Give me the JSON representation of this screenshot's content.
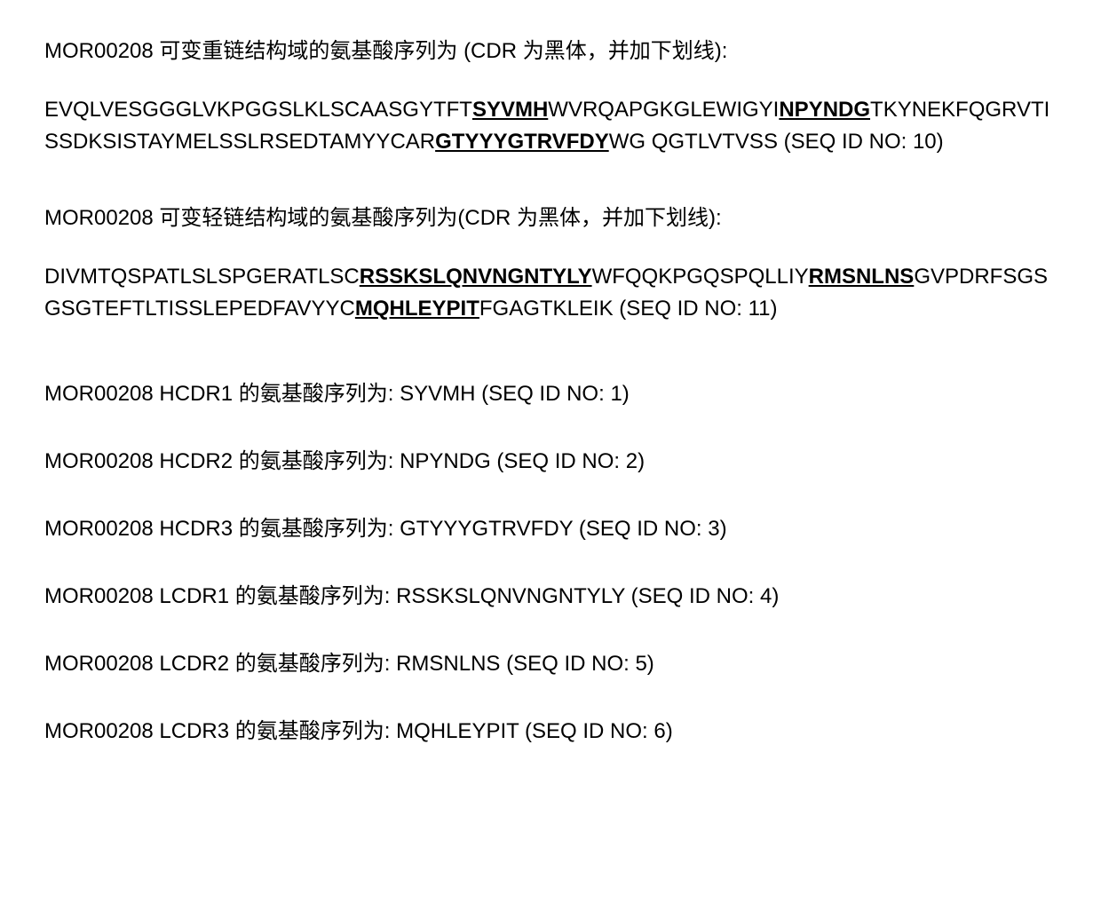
{
  "heavy_chain": {
    "heading": "MOR00208 可变重链结构域的氨基酸序列为 (CDR 为黑体，并加下划线):",
    "seq_pre1": "EVQLVESGGGLVKPGGSLKLSCAASGYTFT",
    "cdr1": "SYVMH",
    "seq_mid1": "WVRQAPGKGLEWIGYI",
    "cdr2": "NPYNDG",
    "seq_mid2": "TKYNEKFQGRVTISSDKSISTAYMELSSLRSEDTAMYYCAR",
    "cdr3": "GTYYYGTRVFDY",
    "seq_post": "WG QGTLVTVSS (SEQ ID NO: 10)"
  },
  "light_chain": {
    "heading": "MOR00208 可变轻链结构域的氨基酸序列为(CDR 为黑体，并加下划线):",
    "seq_pre1": "DIVMTQSPATLSLSPGERATLSC",
    "cdr1": "RSSKSLQNVNGNTYLY",
    "seq_mid1": "WFQQKPGQSPQLLIY",
    "cdr2": "RMSNLNS",
    "seq_mid2": "GVPDRFSGSGSGTEFTLTISSLEPEDFAVYYC",
    "cdr3": "MQHLEYPIT",
    "seq_post": "FGAGTKLEIK (SEQ ID NO: 11)"
  },
  "cdr_list": {
    "hcdr1": "MOR00208 HCDR1 的氨基酸序列为: SYVMH (SEQ ID NO: 1)",
    "hcdr2": "MOR00208 HCDR2 的氨基酸序列为: NPYNDG (SEQ ID NO: 2)",
    "hcdr3": "MOR00208 HCDR3 的氨基酸序列为: GTYYYGTRVFDY (SEQ ID NO: 3)",
    "lcdr1": "MOR00208 LCDR1 的氨基酸序列为: RSSKSLQNVNGNTYLY (SEQ ID NO: 4)",
    "lcdr2": "MOR00208 LCDR2 的氨基酸序列为: RMSNLNS (SEQ ID NO: 5)",
    "lcdr3": "MOR00208 LCDR3 的氨基酸序列为: MQHLEYPIT (SEQ ID NO: 6)"
  }
}
